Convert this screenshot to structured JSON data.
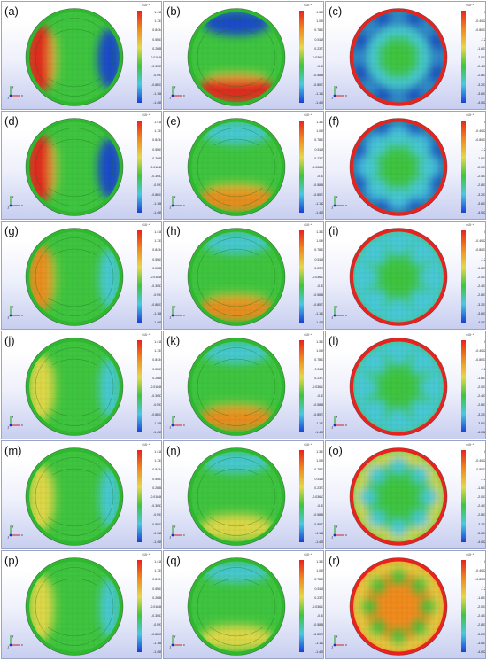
{
  "colorbars": {
    "set1": {
      "exponent": "×10⁻⁶",
      "ticks": [
        "1.418",
        "1.131",
        "0.8434",
        "0.5561",
        "0.2688",
        "-0.01846",
        "-0.3057",
        "-0.593",
        "-0.8803",
        "-1.168",
        "-1.455"
      ]
    },
    "set2": {
      "exponent": "×10⁻⁶",
      "ticks": [
        "1.333",
        "1.059",
        "0.7853",
        "0.5115",
        "0.2377",
        "-0.03617",
        "-0.31",
        "-0.5838",
        "-0.8577",
        "-1.132",
        "-1.405"
      ]
    },
    "set3": {
      "exponent": "×10⁻⁶",
      "ticks": [
        "0",
        "-0.4002",
        "-0.8003",
        "-1.2",
        "-1.601",
        "-2.001",
        "-2.401",
        "-2.801",
        "-3.201",
        "-3.601",
        "-4.002"
      ]
    }
  },
  "axis_labels": {
    "x": "x",
    "y": "y",
    "z": "z"
  },
  "palette": {
    "red": "#e8231f",
    "orange": "#f08a1e",
    "yellow": "#e6d84a",
    "green": "#3fc43f",
    "cyan": "#49c9e0",
    "blue": "#1a3fd6",
    "dark_blue": "#0a1aa8"
  },
  "panels": [
    {
      "label": "(a)",
      "set": "set1",
      "pattern": "lr",
      "strength": 1.0
    },
    {
      "label": "(b)",
      "set": "set2",
      "pattern": "tb",
      "strength": 1.0
    },
    {
      "label": "(c)",
      "set": "set3",
      "pattern": "ring",
      "strength": 1.0
    },
    {
      "label": "(d)",
      "set": "set1",
      "pattern": "lr",
      "strength": 0.95
    },
    {
      "label": "(e)",
      "set": "set2",
      "pattern": "tb",
      "strength": 0.7
    },
    {
      "label": "(f)",
      "set": "set3",
      "pattern": "ring",
      "strength": 0.85
    },
    {
      "label": "(g)",
      "set": "set1",
      "pattern": "lr",
      "strength": 0.55
    },
    {
      "label": "(h)",
      "set": "set2",
      "pattern": "tb",
      "strength": 0.6
    },
    {
      "label": "(i)",
      "set": "set3",
      "pattern": "ring",
      "strength": 0.7
    },
    {
      "label": "(j)",
      "set": "set1",
      "pattern": "lr",
      "strength": 0.5
    },
    {
      "label": "(k)",
      "set": "set2",
      "pattern": "tb",
      "strength": 0.55
    },
    {
      "label": "(l)",
      "set": "set3",
      "pattern": "ring",
      "strength": 0.6
    },
    {
      "label": "(m)",
      "set": "set1",
      "pattern": "lr",
      "strength": 0.45
    },
    {
      "label": "(n)",
      "set": "set2",
      "pattern": "tb",
      "strength": 0.5
    },
    {
      "label": "(o)",
      "set": "set3",
      "pattern": "ring",
      "strength": 0.5
    },
    {
      "label": "(p)",
      "set": "set1",
      "pattern": "lr",
      "strength": 0.35
    },
    {
      "label": "(q)",
      "set": "set2",
      "pattern": "tb",
      "strength": 0.35
    },
    {
      "label": "(r)",
      "set": "set3",
      "pattern": "ring",
      "strength": 0.3
    }
  ]
}
